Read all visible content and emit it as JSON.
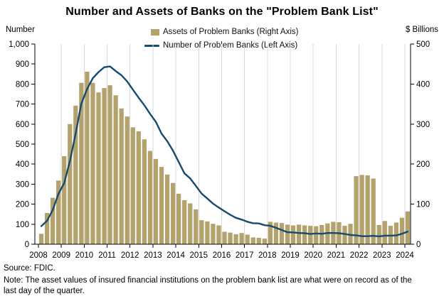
{
  "page": {
    "title": "Number and Assets of Banks on the \"Problem Bank List\"",
    "source_line": "Source: FDIC.",
    "note_line": "Note: The asset values of insured financial institutions on the problem bank list are what were on record as of the last day of the quarter."
  },
  "chart_data": {
    "type": "bar+line",
    "title": "Number and Assets of Banks on the \"Problem Bank List\"",
    "frequency": "quarterly",
    "x_start": "2008 Q1",
    "x_end": "2024 Q1",
    "legend_position": "top-center",
    "grid": "vertical-yearly",
    "x_axis": {
      "tick_labels": [
        "2008",
        "2009",
        "2010",
        "2011",
        "2012",
        "2013",
        "2014",
        "2015",
        "2016",
        "2017",
        "2018",
        "2019",
        "2020",
        "2021",
        "2022",
        "2023",
        "2024"
      ]
    },
    "left_axis": {
      "label": "Number",
      "min": 0,
      "max": 1000,
      "tick_step": 100,
      "tick_labels": [
        "0",
        "100",
        "200",
        "300",
        "400",
        "500",
        "600",
        "700",
        "800",
        "900",
        "1,000"
      ]
    },
    "right_axis": {
      "label": "$ Billions",
      "min": 0,
      "max": 500,
      "tick_step": 100,
      "tick_labels": [
        "0",
        "100",
        "200",
        "300",
        "400",
        "500"
      ]
    },
    "series": [
      {
        "name": "Assets of Problem Banks (Right Axis)",
        "type": "bar",
        "axis": "right",
        "color": "#b3a26b",
        "values": [
          26,
          78,
          116,
          159,
          220,
          300,
          346,
          403,
          431,
          403,
          379,
          390,
          397,
          372,
          339,
          319,
          292,
          282,
          262,
          233,
          213,
          193,
          174,
          153,
          126,
          110,
          102,
          87,
          60,
          57,
          51,
          47,
          31,
          29,
          25,
          28,
          24,
          17,
          16,
          14,
          56,
          54,
          53,
          49,
          47,
          49,
          47,
          46,
          45,
          48,
          52,
          56,
          55,
          46,
          51,
          170,
          173,
          172,
          164,
          48,
          58,
          46,
          54,
          66,
          82
        ]
      },
      {
        "name": "Number of Problem Banks (Left Axis)",
        "type": "line",
        "axis": "left",
        "color": "#164a6e",
        "values": [
          90,
          117,
          171,
          252,
          305,
          416,
          552,
          702,
          775,
          829,
          860,
          884,
          888,
          865,
          844,
          813,
          772,
          732,
          694,
          651,
          612,
          553,
          515,
          467,
          411,
          354,
          329,
          291,
          253,
          228,
          203,
          183,
          165,
          147,
          132,
          123,
          112,
          105,
          104,
          95,
          92,
          82,
          71,
          60,
          59,
          56,
          55,
          51,
          54,
          52,
          56,
          56,
          55,
          51,
          46,
          44,
          40,
          40,
          42,
          39,
          43,
          43,
          44,
          52,
          63
        ]
      }
    ],
    "colors": {
      "grid": "#d9d9d9",
      "axis": "#000000"
    }
  }
}
